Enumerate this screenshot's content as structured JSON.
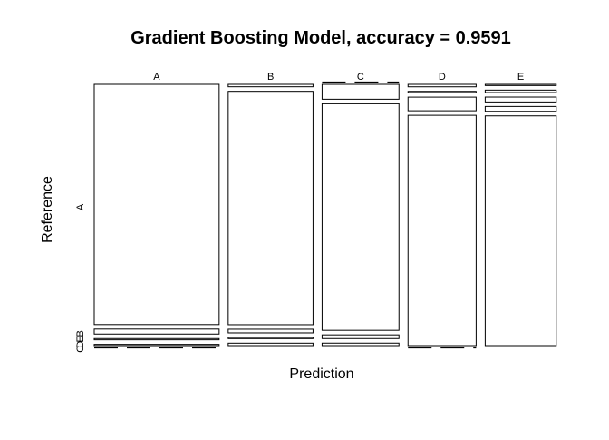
{
  "chart_data": {
    "type": "mosaic",
    "title": "Gradient Boosting Model, accuracy =  0.9591",
    "xlabel": "Prediction",
    "ylabel": "Reference",
    "prediction_classes": [
      "A",
      "B",
      "C",
      "D",
      "E"
    ],
    "reference_tick_labels": [
      "A",
      "B",
      "C",
      "D",
      "E"
    ],
    "reference_classes": [
      "A",
      "B",
      "C",
      "D",
      "E"
    ],
    "column_proportions": [
      0.299,
      0.203,
      0.184,
      0.163,
      0.17
    ],
    "cell_proportions": [
      [
        0.97,
        0.02,
        0.005,
        0.005,
        0.0
      ],
      [
        0.01,
        0.96,
        0.015,
        0.005,
        0.01
      ],
      [
        0.0,
        0.06,
        0.915,
        0.015,
        0.01
      ],
      [
        0.01,
        0.005,
        0.055,
        0.93,
        0.0
      ],
      [
        0.005,
        0.01,
        0.02,
        0.02,
        0.945
      ]
    ],
    "grid": false,
    "legend": "none"
  }
}
